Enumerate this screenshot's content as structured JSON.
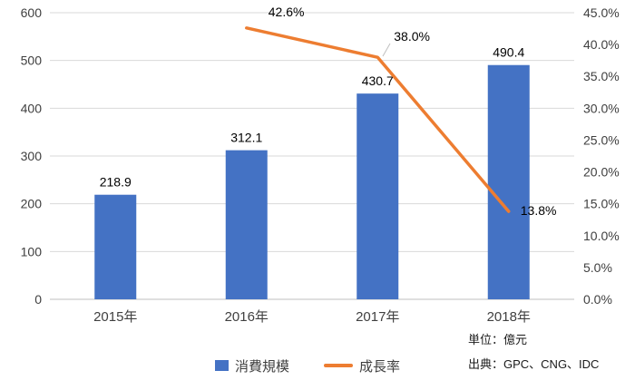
{
  "chart_data": {
    "type": "combo",
    "categories": [
      "2015年",
      "2016年",
      "2017年",
      "2018年"
    ],
    "series": [
      {
        "name": "消費規模",
        "type": "bar",
        "axis": "left",
        "color": "#4472c4",
        "values": [
          218.9,
          312.1,
          430.7,
          490.4
        ],
        "labels": [
          "218.9",
          "312.1",
          "430.7",
          "490.4"
        ]
      },
      {
        "name": "成長率",
        "type": "line",
        "axis": "right",
        "color": "#ed7d31",
        "values": [
          null,
          42.6,
          38.0,
          13.8
        ],
        "labels": [
          "",
          "42.6%",
          "38.0%",
          "13.8%"
        ]
      }
    ],
    "left_axis": {
      "min": 0,
      "max": 600,
      "step": 100,
      "ticks": [
        "0",
        "100",
        "200",
        "300",
        "400",
        "500",
        "600"
      ]
    },
    "right_axis": {
      "min": 0,
      "max": 45,
      "step": 5,
      "ticks": [
        "0.0%",
        "5.0%",
        "10.0%",
        "15.0%",
        "20.0%",
        "25.0%",
        "30.0%",
        "35.0%",
        "40.0%",
        "45.0%"
      ]
    },
    "legend": [
      {
        "label": "消費規模",
        "marker": "square",
        "color": "#4472c4"
      },
      {
        "label": "成長率",
        "marker": "line",
        "color": "#ed7d31"
      }
    ],
    "notes": {
      "unit": "単位：億元",
      "source": "出典：GPC、CNG、IDC"
    },
    "style": {
      "grid_color": "#d9d9d9",
      "axis_color": "#bfbfbf",
      "text_color": "#404040",
      "label_color": "#000000",
      "grid": true,
      "legend_position": "bottom"
    }
  }
}
